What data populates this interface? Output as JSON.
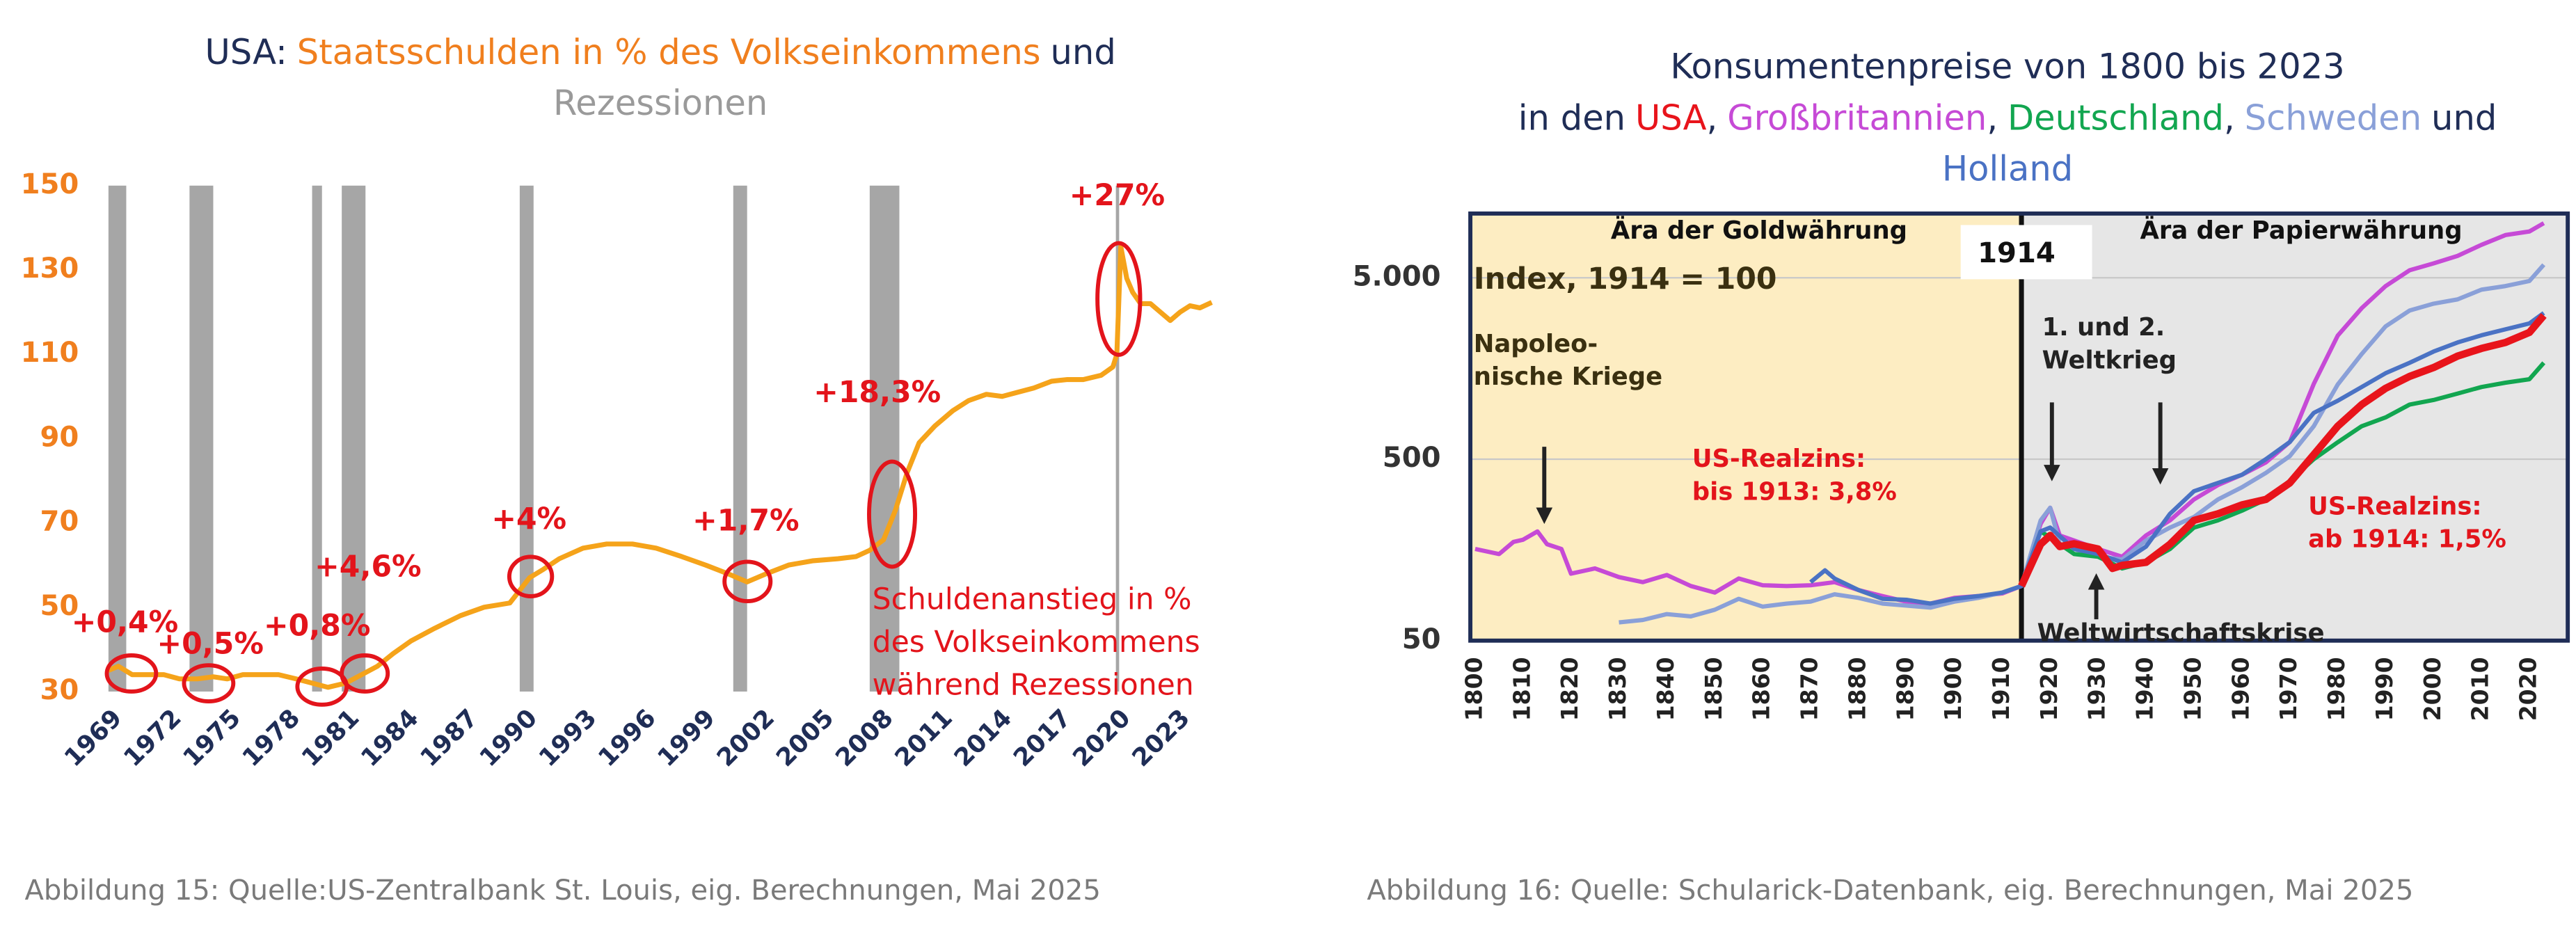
{
  "chart_data": [
    {
      "type": "line",
      "title_parts": [
        {
          "text": "USA:",
          "color": "#1f2d56"
        },
        {
          "text": "Staatsschulden in % des Volkseinkommens",
          "color": "#f07f1e"
        },
        {
          "text": "und",
          "color": "#1f2d56"
        },
        {
          "text": "Rezessionen",
          "color": "#9a9a9a"
        }
      ],
      "x": [
        1969,
        1969.5,
        1970.2,
        1971,
        1971.8,
        1972.6,
        1973.5,
        1974.3,
        1975,
        1975.8,
        1976.8,
        1977.6,
        1978.5,
        1979.3,
        1980.1,
        1981,
        1981.8,
        1982.6,
        1983.4,
        1984.3,
        1985.5,
        1986.8,
        1988,
        1989.3,
        1990.3,
        1991,
        1991.8,
        1993,
        1994.2,
        1995.5,
        1996.7,
        1998,
        1999.2,
        2000.3,
        2001.3,
        2002.3,
        2003.4,
        2004.6,
        2005.9,
        2006.8,
        2007.5,
        2008.2,
        2008.8,
        2009.4,
        2010,
        2010.8,
        2011.7,
        2012.5,
        2013.4,
        2014.2,
        2015,
        2015.8,
        2016.7,
        2017.5,
        2018.3,
        2019.2,
        2019.8,
        2020,
        2020.2,
        2020.5,
        2020.8,
        2021.2,
        2021.7,
        2022.2,
        2022.7,
        2023.2,
        2023.7,
        2024.2,
        2024.8
      ],
      "values": [
        35,
        36,
        34,
        34,
        34,
        33,
        33,
        33.5,
        33,
        34,
        34,
        34,
        33,
        32,
        31,
        32,
        34,
        36,
        39,
        42,
        45,
        48,
        50,
        51,
        57,
        59,
        61.5,
        64,
        65,
        65,
        64,
        62,
        60,
        58,
        56,
        58,
        60,
        61,
        61.5,
        62,
        63.5,
        66,
        73,
        82,
        89,
        93,
        96.6,
        99,
        100.5,
        100,
        101,
        102,
        103.6,
        104,
        104,
        105,
        107,
        110,
        135.5,
        128,
        124.7,
        122,
        122,
        120,
        118,
        120,
        121.5,
        121,
        122.3
      ],
      "color": "#f5a31a",
      "xlim": [
        1969,
        2025
      ],
      "ylim": [
        30,
        150
      ],
      "xticks": [
        1969,
        1972,
        1975,
        1978,
        1981,
        1984,
        1987,
        1990,
        1993,
        1996,
        1999,
        2002,
        2005,
        2008,
        2011,
        2014,
        2017,
        2020,
        2023
      ],
      "yticks": [
        30,
        50,
        70,
        90,
        110,
        130,
        150
      ],
      "xtick_color": "#1f2d56",
      "ytick_color": "#f07f1e",
      "grid": false,
      "recessions": [
        [
          1969,
          1969.9
        ],
        [
          1973.1,
          1974.3
        ],
        [
          1979.3,
          1979.8
        ],
        [
          1980.8,
          1982
        ],
        [
          1989.8,
          1990.5
        ],
        [
          2000.6,
          2001.3
        ],
        [
          2007.5,
          2009
        ],
        [
          2019.95,
          2020.1
        ]
      ],
      "recession_color": "#a6a6a6",
      "annotation_color": "#e3141b",
      "annotations": [
        {
          "text": "+0,4%"
        },
        {
          "text": "+0,5%"
        },
        {
          "text": "+0,8%"
        },
        {
          "text": "+4,6%"
        },
        {
          "text": "+4%"
        },
        {
          "text": "+1,7%"
        },
        {
          "text": "+18,3%"
        },
        {
          "text": "+27%"
        },
        {
          "text": [
            "Schuldenanstieg in %",
            "des Volkseinkommens",
            "während Rezessionen"
          ]
        }
      ],
      "caption": "Abbildung 15: Quelle:US-Zentralbank St. Louis, eig. Berechnungen, Mai 2025"
    },
    {
      "type": "line",
      "title": "Konsumentenpreise von 1800 bis 2023",
      "title_prefix": "in den",
      "title_separator": ",",
      "title_joiner": "und",
      "title_color": "#1f2d56",
      "log_scale": true,
      "xlim": [
        1799,
        2028
      ],
      "ylim": [
        50,
        11300
      ],
      "xticks": [
        1800,
        1810,
        1820,
        1830,
        1840,
        1850,
        1860,
        1870,
        1880,
        1890,
        1900,
        1910,
        1920,
        1930,
        1940,
        1950,
        1960,
        1970,
        1980,
        1990,
        2000,
        2010,
        2020
      ],
      "yticks": [
        50,
        500,
        {
          "value": 5000,
          "label": "5.000"
        }
      ],
      "xtick_color": "#222222",
      "ytick_color": "#333333",
      "grid": true,
      "regions": [
        {
          "label": "Ära der Goldwährung",
          "color": "#fdedc2"
        },
        {
          "label": "Ära der Papierwährung",
          "color": "#e6e6e6"
        }
      ],
      "divider": {
        "value": 1914,
        "label": "1914"
      },
      "series": [
        {
          "name": "USA",
          "color": "#e8141b",
          "x": [
            1914,
            1918,
            1920,
            1922,
            1925,
            1930,
            1933,
            1935,
            1940,
            1945,
            1950,
            1955,
            1960,
            1965,
            1970,
            1975,
            1980,
            1985,
            1990,
            1995,
            2000,
            2005,
            2010,
            2015,
            2020,
            2023
          ],
          "values": [
            100,
            170,
            190,
            165,
            171,
            160,
            125,
            130,
            135,
            170,
            230,
            250,
            280,
            300,
            370,
            530,
            760,
            1000,
            1230,
            1430,
            1600,
            1850,
            2040,
            2200,
            2500,
            3100
          ]
        },
        {
          "name": "Großbritannien",
          "color": "#c64ad6",
          "x": [
            1800,
            1805,
            1808,
            1810,
            1813,
            1815,
            1818,
            1820,
            1825,
            1830,
            1835,
            1840,
            1845,
            1850,
            1855,
            1860,
            1865,
            1870,
            1875,
            1880,
            1885,
            1890,
            1895,
            1900,
            1905,
            1910,
            1914,
            1918,
            1920,
            1922,
            1925,
            1930,
            1935,
            1940,
            1945,
            1950,
            1955,
            1960,
            1965,
            1970,
            1975,
            1980,
            1985,
            1990,
            1995,
            2000,
            2005,
            2010,
            2015,
            2020,
            2023
          ],
          "values": [
            160,
            150,
            175,
            180,
            200,
            170,
            160,
            117,
            125,
            112,
            105,
            115,
            100,
            92,
            110,
            101,
            100,
            101,
            105,
            95,
            88,
            82,
            80,
            86,
            88,
            91,
            100,
            220,
            270,
            190,
            178,
            160,
            145,
            190,
            230,
            300,
            360,
            410,
            480,
            622,
            1300,
            2400,
            3400,
            4500,
            5500,
            6000,
            6600,
            7600,
            8600,
            9000,
            10000
          ]
        },
        {
          "name": "Deutschland",
          "color": "#12a650",
          "x": [
            1914,
            1918,
            1920,
            1925,
            1930,
            1935,
            1940,
            1945,
            1950,
            1955,
            1960,
            1965,
            1970,
            1975,
            1980,
            1985,
            1990,
            1995,
            2000,
            2005,
            2010,
            2015,
            2020,
            2023
          ],
          "values": [
            100,
            200,
            185,
            150,
            145,
            125,
            135,
            160,
            210,
            230,
            260,
            300,
            380,
            500,
            620,
            760,
            850,
            1000,
            1060,
            1150,
            1250,
            1320,
            1380,
            1700
          ]
        },
        {
          "name": "Schweden",
          "color": "#8aa0d8",
          "x": [
            1830,
            1835,
            1840,
            1845,
            1850,
            1855,
            1860,
            1865,
            1870,
            1875,
            1880,
            1885,
            1890,
            1895,
            1900,
            1905,
            1910,
            1914,
            1918,
            1920,
            1922,
            1930,
            1935,
            1940,
            1945,
            1950,
            1955,
            1960,
            1965,
            1970,
            1975,
            1980,
            1985,
            1990,
            1995,
            2000,
            2005,
            2010,
            2015,
            2020,
            2023
          ],
          "values": [
            63,
            65,
            70,
            68,
            74,
            85,
            77,
            80,
            82,
            90,
            86,
            80,
            78,
            76,
            82,
            86,
            92,
            100,
            230,
            270,
            170,
            145,
            140,
            178,
            210,
            240,
            300,
            350,
            420,
            520,
            760,
            1290,
            1900,
            2700,
            3300,
            3600,
            3800,
            4300,
            4500,
            4800,
            5900
          ]
        },
        {
          "name": "Holland",
          "color": "#4a72c4",
          "x": [
            1870,
            1873,
            1875,
            1880,
            1885,
            1890,
            1895,
            1900,
            1905,
            1910,
            1914,
            1918,
            1920,
            1925,
            1930,
            1935,
            1940,
            1945,
            1950,
            1955,
            1960,
            1965,
            1970,
            1975,
            1980,
            1985,
            1990,
            1995,
            2000,
            2005,
            2010,
            2015,
            2020,
            2023
          ],
          "values": [
            105,
            122,
            110,
            95,
            85,
            84,
            80,
            85,
            88,
            92,
            100,
            200,
            210,
            160,
            150,
            135,
            165,
            250,
            333,
            370,
            410,
            500,
            622,
            900,
            1050,
            1250,
            1490,
            1700,
            1960,
            2200,
            2410,
            2600,
            2800,
            3200
          ]
        }
      ],
      "annotations": [
        {
          "text": "Index, 1914 = 100",
          "color": "#3a3010"
        },
        {
          "text": [
            "Napoleo-",
            "nische Kriege"
          ],
          "color": "#3a3010"
        },
        {
          "text": [
            "1. und 2.",
            "Weltkrieg"
          ],
          "color": "#222222"
        },
        {
          "text": [
            "US-Realzins:",
            "bis 1913: 3,8%"
          ],
          "color": "#e3141b"
        },
        {
          "text": [
            "US-Realzins:",
            "ab 1914: 1,5%"
          ],
          "color": "#e3141b"
        },
        {
          "text": "Weltwirtschaftskrise",
          "color": "#222222"
        }
      ],
      "caption": "Abbildung 16: Quelle: Schularick-Datenbank, eig. Berechnungen, Mai 2025"
    }
  ]
}
